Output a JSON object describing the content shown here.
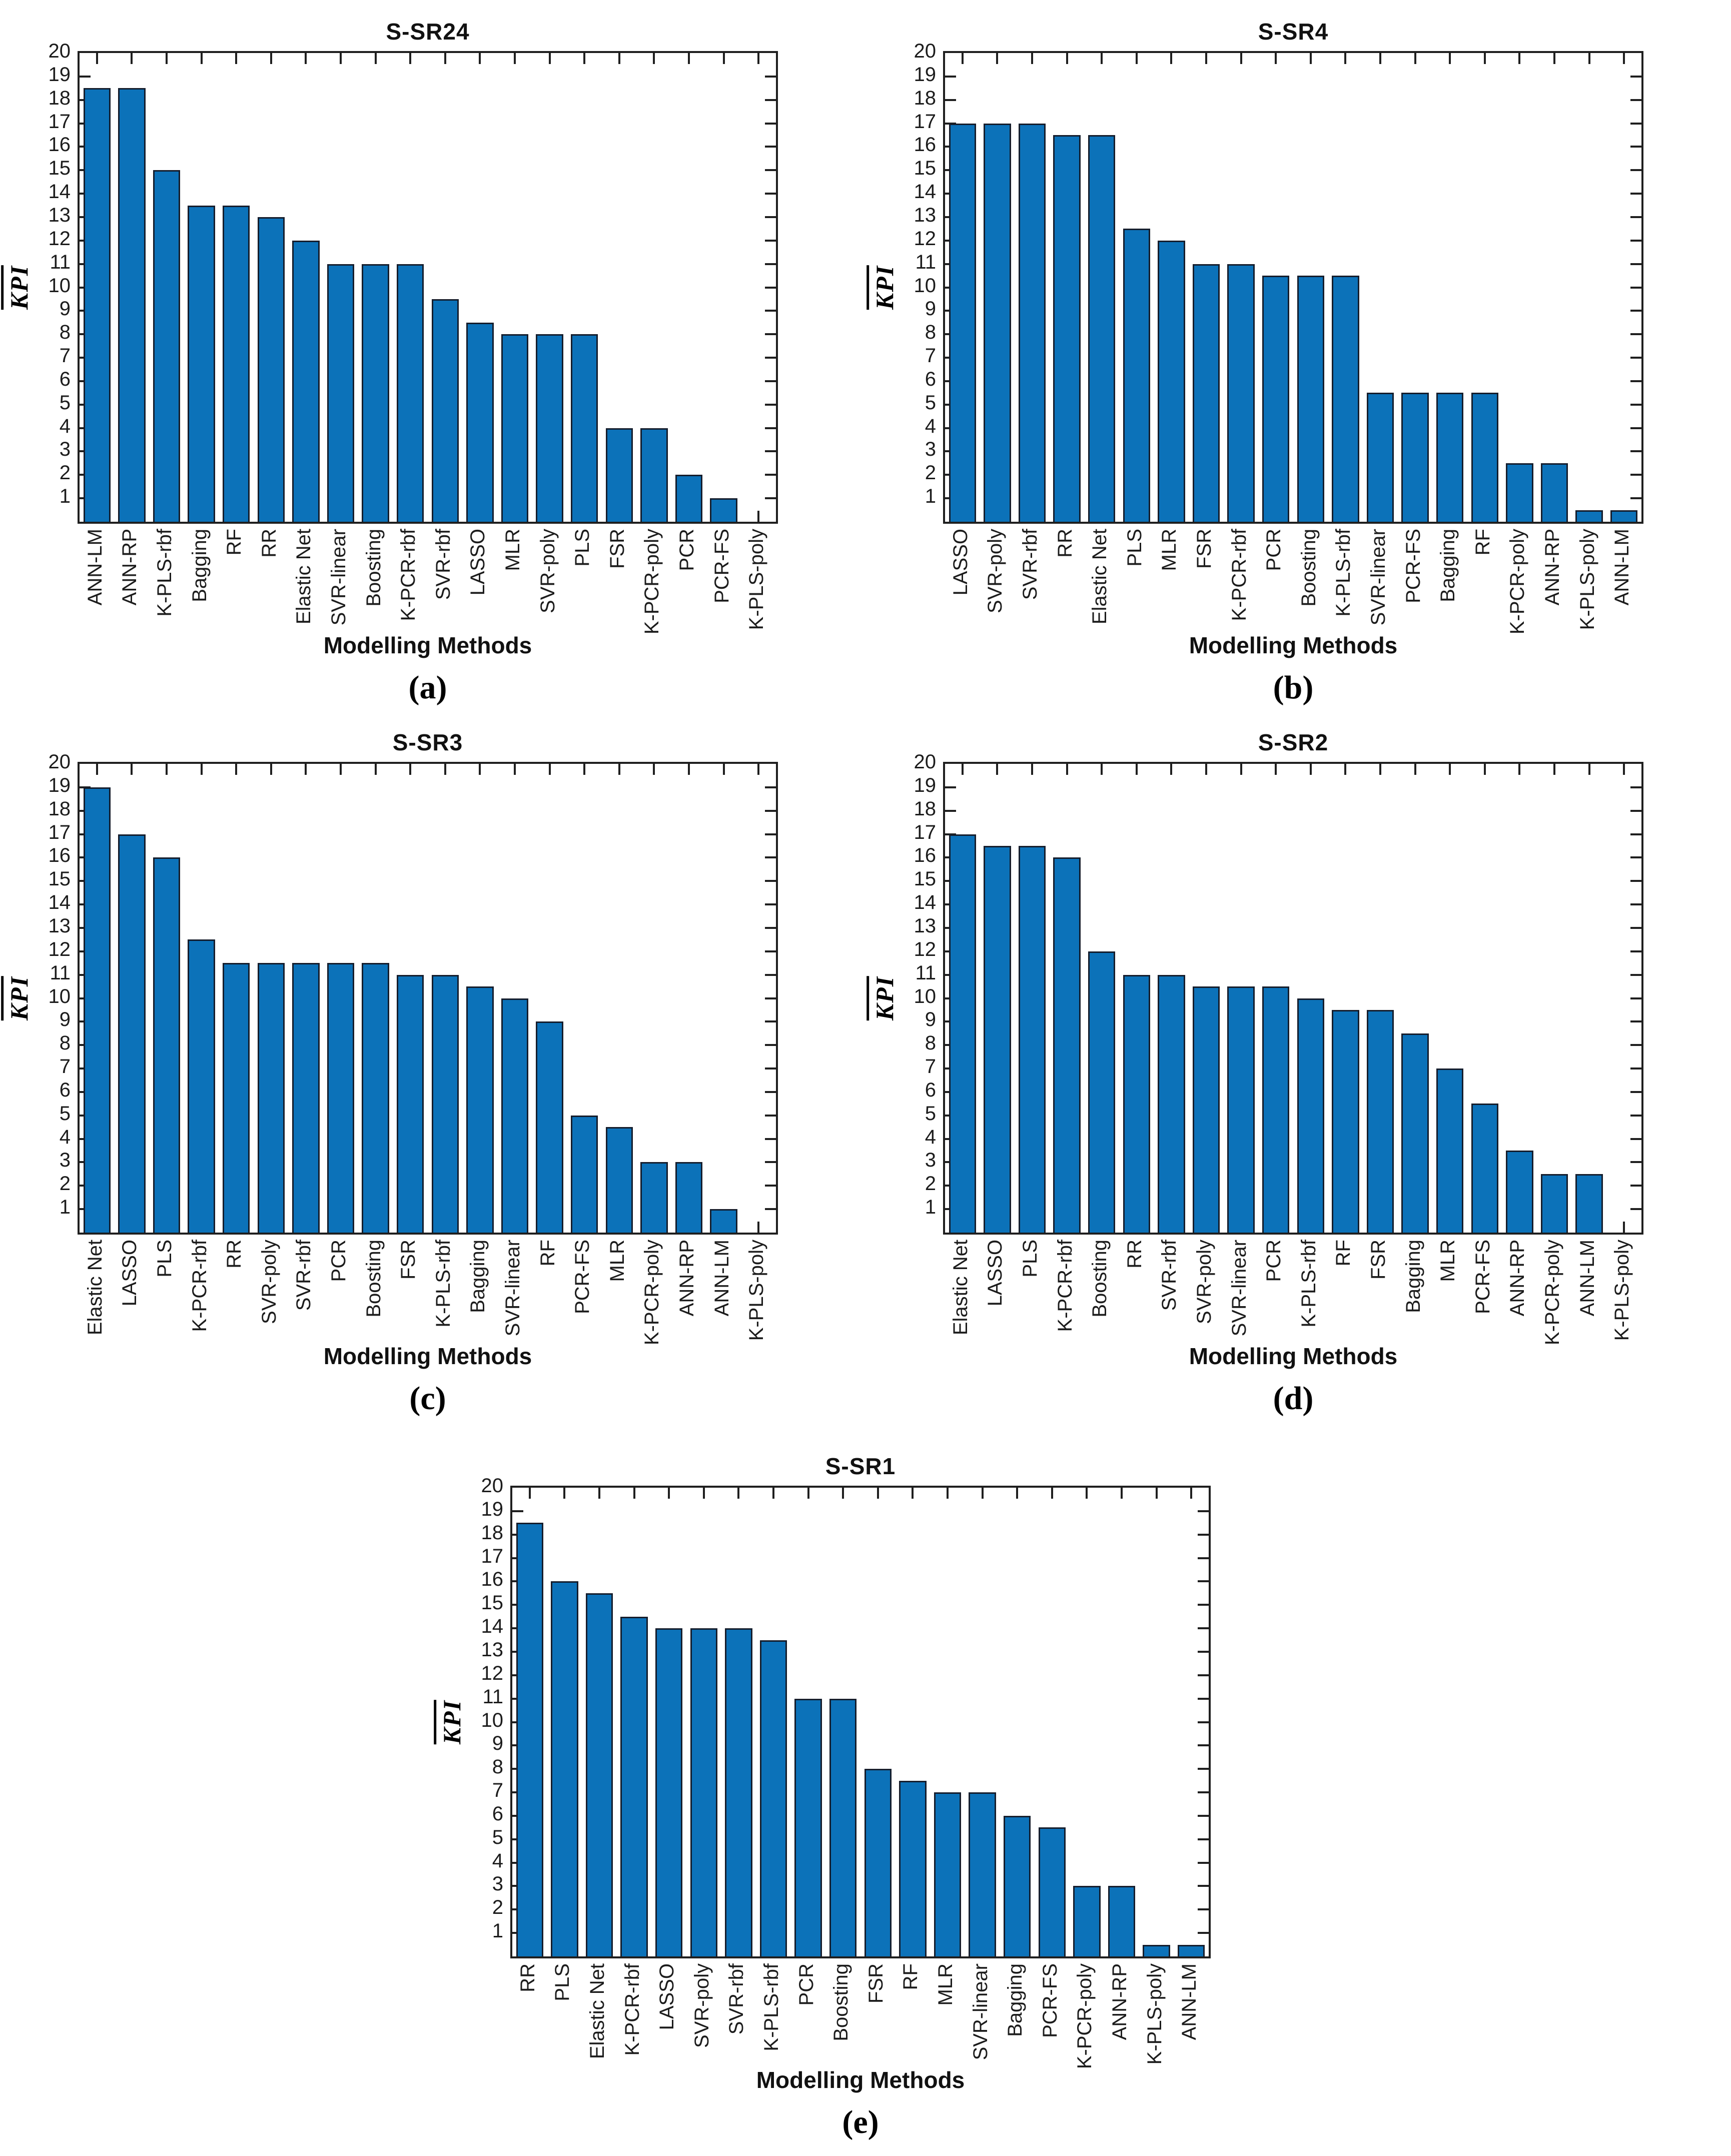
{
  "page": {
    "background": "#ffffff",
    "bar_color": "#0c72b9",
    "bar_edge_color": "#151d2c",
    "axis_color": "#1f1f1f"
  },
  "captions": [
    "(a)",
    "(b)",
    "(c)",
    "(d)",
    "(e)"
  ],
  "chart_data": [
    {
      "type": "bar",
      "title": "S-SR24",
      "xlabel": "Modelling Methods",
      "ylabel": "KPI",
      "ylabel_overline": true,
      "ylim": [
        0,
        20
      ],
      "yticks": [
        1,
        2,
        3,
        4,
        5,
        6,
        7,
        8,
        9,
        10,
        11,
        12,
        13,
        14,
        15,
        16,
        17,
        18,
        19,
        20
      ],
      "grid": false,
      "legend": "none",
      "categories": [
        "ANN-LM",
        "ANN-RP",
        "K-PLS-rbf",
        "Bagging",
        "RF",
        "RR",
        "Elastic Net",
        "SVR-linear",
        "Boosting",
        "K-PCR-rbf",
        "SVR-rbf",
        "LASSO",
        "MLR",
        "SVR-poly",
        "PLS",
        "FSR",
        "K-PCR-poly",
        "PCR",
        "PCR-FS",
        "K-PLS-poly"
      ],
      "values": [
        18.5,
        18.5,
        15,
        13.5,
        13.5,
        13,
        12,
        11,
        11,
        11,
        9.5,
        8.5,
        8,
        8,
        8,
        4,
        4,
        2,
        1,
        0
      ]
    },
    {
      "type": "bar",
      "title": "S-SR4",
      "xlabel": "Modelling Methods",
      "ylabel": "KPI",
      "ylabel_overline": true,
      "ylim": [
        0,
        20
      ],
      "yticks": [
        1,
        2,
        3,
        4,
        5,
        6,
        7,
        8,
        9,
        10,
        11,
        12,
        13,
        14,
        15,
        16,
        17,
        18,
        19,
        20
      ],
      "grid": false,
      "legend": "none",
      "categories": [
        "LASSO",
        "SVR-poly",
        "SVR-rbf",
        "RR",
        "Elastic Net",
        "PLS",
        "MLR",
        "FSR",
        "K-PCR-rbf",
        "PCR",
        "Boosting",
        "K-PLS-rbf",
        "SVR-linear",
        "PCR-FS",
        "Bagging",
        "RF",
        "K-PCR-poly",
        "ANN-RP",
        "K-PLS-poly",
        "ANN-LM"
      ],
      "values": [
        17,
        17,
        17,
        16.5,
        16.5,
        12.5,
        12,
        11,
        11,
        10.5,
        10.5,
        10.5,
        5.5,
        5.5,
        5.5,
        5.5,
        2.5,
        2.5,
        0.5,
        0.5
      ]
    },
    {
      "type": "bar",
      "title": "S-SR3",
      "xlabel": "Modelling Methods",
      "ylabel": "KPI",
      "ylabel_overline": true,
      "ylim": [
        0,
        20
      ],
      "yticks": [
        1,
        2,
        3,
        4,
        5,
        6,
        7,
        8,
        9,
        10,
        11,
        12,
        13,
        14,
        15,
        16,
        17,
        18,
        19,
        20
      ],
      "grid": false,
      "legend": "none",
      "categories": [
        "Elastic Net",
        "LASSO",
        "PLS",
        "K-PCR-rbf",
        "RR",
        "SVR-poly",
        "SVR-rbf",
        "PCR",
        "Boosting",
        "FSR",
        "K-PLS-rbf",
        "Bagging",
        "SVR-linear",
        "RF",
        "PCR-FS",
        "MLR",
        "K-PCR-poly",
        "ANN-RP",
        "ANN-LM",
        "K-PLS-poly"
      ],
      "values": [
        19,
        17,
        16,
        12.5,
        11.5,
        11.5,
        11.5,
        11.5,
        11.5,
        11,
        11,
        10.5,
        10,
        9,
        5,
        4.5,
        3,
        3,
        1,
        0
      ]
    },
    {
      "type": "bar",
      "title": "S-SR2",
      "xlabel": "Modelling Methods",
      "ylabel": "KPI",
      "ylabel_overline": true,
      "ylim": [
        0,
        20
      ],
      "yticks": [
        1,
        2,
        3,
        4,
        5,
        6,
        7,
        8,
        9,
        10,
        11,
        12,
        13,
        14,
        15,
        16,
        17,
        18,
        19,
        20
      ],
      "grid": false,
      "legend": "none",
      "categories": [
        "Elastic Net",
        "LASSO",
        "PLS",
        "K-PCR-rbf",
        "Boosting",
        "RR",
        "SVR-rbf",
        "SVR-poly",
        "SVR-linear",
        "PCR",
        "K-PLS-rbf",
        "RF",
        "FSR",
        "Bagging",
        "MLR",
        "PCR-FS",
        "ANN-RP",
        "K-PCR-poly",
        "ANN-LM",
        "K-PLS-poly"
      ],
      "values": [
        17,
        16.5,
        16.5,
        16,
        12,
        11,
        11,
        10.5,
        10.5,
        10.5,
        10,
        9.5,
        9.5,
        8.5,
        7,
        5.5,
        3.5,
        2.5,
        2.5,
        0
      ]
    },
    {
      "type": "bar",
      "title": "S-SR1",
      "xlabel": "Modelling Methods",
      "ylabel": "KPI",
      "ylabel_overline": true,
      "ylim": [
        0,
        20
      ],
      "yticks": [
        1,
        2,
        3,
        4,
        5,
        6,
        7,
        8,
        9,
        10,
        11,
        12,
        13,
        14,
        15,
        16,
        17,
        18,
        19,
        20
      ],
      "grid": false,
      "legend": "none",
      "categories": [
        "RR",
        "PLS",
        "Elastic Net",
        "K-PCR-rbf",
        "LASSO",
        "SVR-poly",
        "SVR-rbf",
        "K-PLS-rbf",
        "PCR",
        "Boosting",
        "FSR",
        "RF",
        "MLR",
        "SVR-linear",
        "Bagging",
        "PCR-FS",
        "K-PCR-poly",
        "ANN-RP",
        "K-PLS-poly",
        "ANN-LM"
      ],
      "values": [
        18.5,
        16,
        15.5,
        14.5,
        14,
        14,
        14,
        13.5,
        11,
        11,
        8,
        7.5,
        7,
        7,
        6,
        5.5,
        3,
        3,
        0.5,
        0.5
      ]
    }
  ]
}
